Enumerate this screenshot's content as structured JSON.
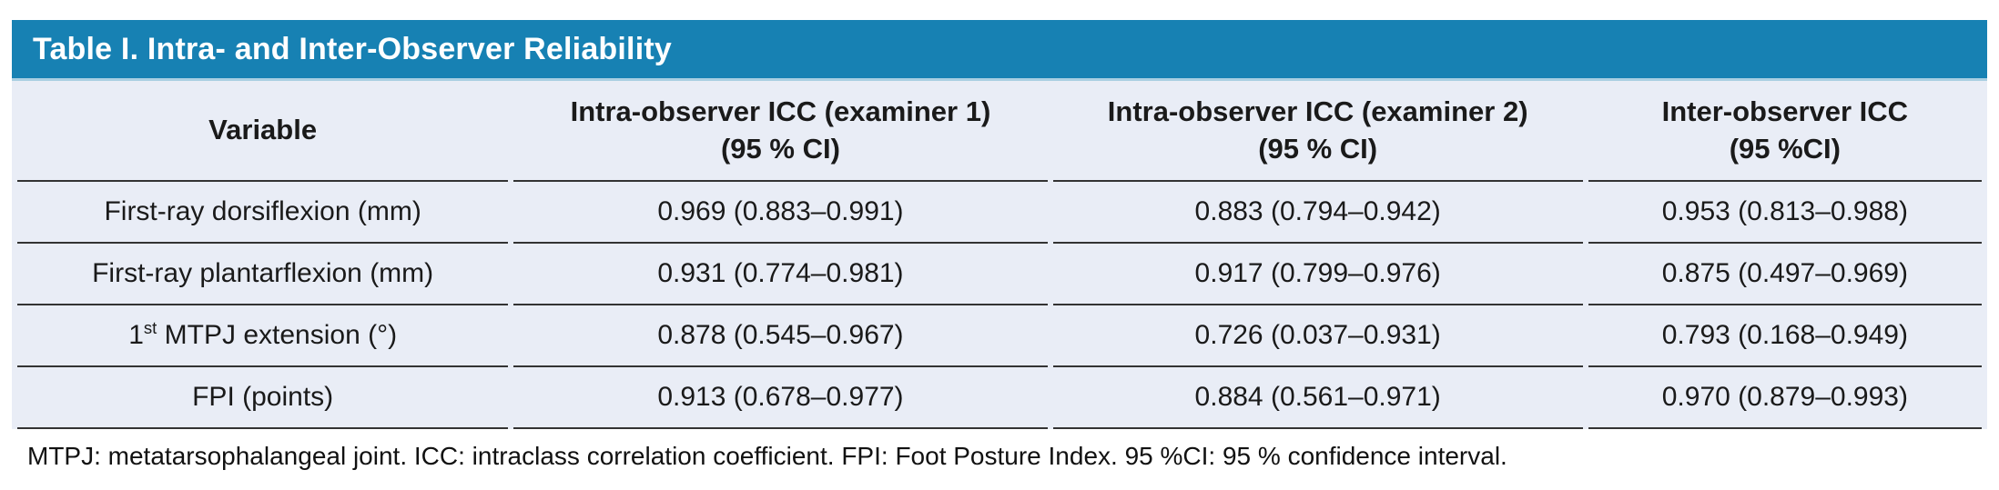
{
  "colors": {
    "banner_bg": "#1781b3",
    "banner_separator": "#a9cfe2",
    "row_bg": "#e9edf6",
    "rule_line": "#333333",
    "title_text": "#ffffff",
    "body_text": "#1a1a1a"
  },
  "banner": {
    "title": "Table I. Intra- and Inter-Observer Reliability"
  },
  "table": {
    "columns": [
      {
        "line1": "Variable",
        "line2": ""
      },
      {
        "line1": "Intra-observer ICC (examiner 1)",
        "line2": "(95 % CI)"
      },
      {
        "line1": "Intra-observer ICC (examiner 2)",
        "line2": "(95 % CI)"
      },
      {
        "line1": "Inter-observer ICC",
        "line2": "(95 %CI)"
      }
    ],
    "rows": [
      {
        "variable": {
          "pre": "First-ray dorsiflexion (mm)",
          "sup": "",
          "post": ""
        },
        "values": [
          "0.969 (0.883–0.991)",
          "0.883 (0.794–0.942)",
          "0.953 (0.813–0.988)"
        ]
      },
      {
        "variable": {
          "pre": "First-ray plantarflexion (mm)",
          "sup": "",
          "post": ""
        },
        "values": [
          "0.931 (0.774–0.981)",
          "0.917 (0.799–0.976)",
          "0.875 (0.497–0.969)"
        ]
      },
      {
        "variable": {
          "pre": "1",
          "sup": "st",
          "post": " MTPJ extension (°)"
        },
        "values": [
          "0.878 (0.545–0.967)",
          "0.726 (0.037–0.931)",
          "0.793 (0.168–0.949)"
        ]
      },
      {
        "variable": {
          "pre": "FPI (points)",
          "sup": "",
          "post": ""
        },
        "values": [
          "0.913 (0.678–0.977)",
          "0.884 (0.561–0.971)",
          "0.970 (0.879–0.993)"
        ]
      }
    ]
  },
  "footnote": "MTPJ: metatarsophalangeal joint. ICC: intraclass correlation coefficient. FPI: Foot Posture Index. 95 %CI: 95 % confidence interval."
}
